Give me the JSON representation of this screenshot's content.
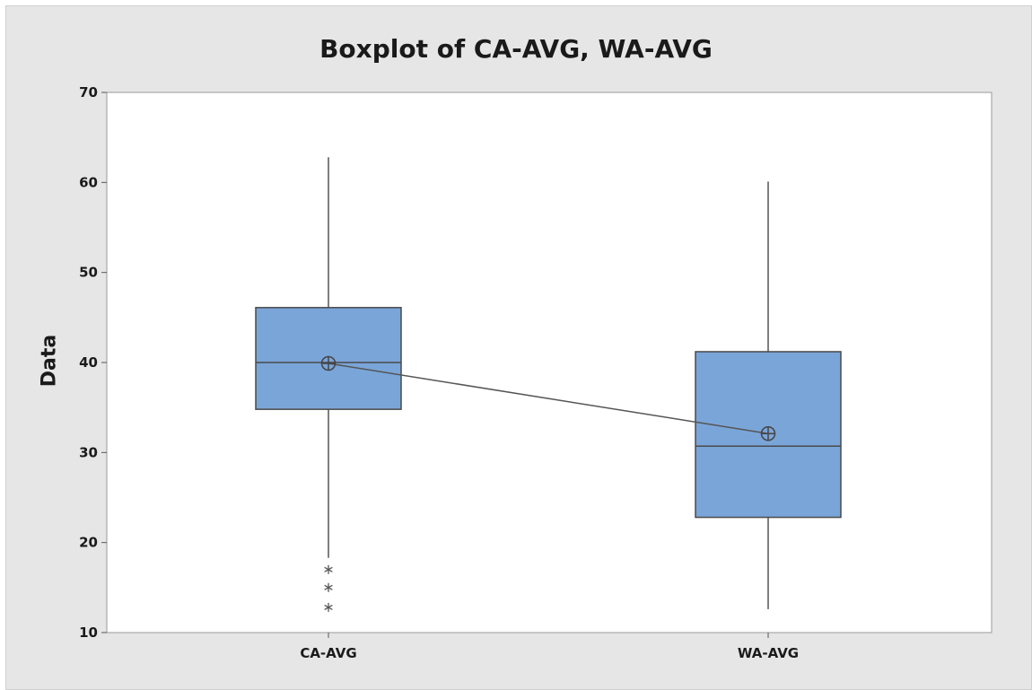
{
  "chart_data": {
    "type": "boxplot",
    "title": "Boxplot of CA-AVG, WA-AVG",
    "xlabel": "",
    "ylabel": "Data",
    "ylim": [
      10,
      70
    ],
    "yticks": [
      10,
      20,
      30,
      40,
      50,
      60,
      70
    ],
    "categories": [
      "CA-AVG",
      "WA-AVG"
    ],
    "series": [
      {
        "category": "CA-AVG",
        "whisker_low": 18.3,
        "q1": 34.8,
        "median": 40,
        "q3": 46.1,
        "whisker_high": 62.8,
        "mean": 39.9,
        "outliers": [
          17,
          15,
          12.8
        ]
      },
      {
        "category": "WA-AVG",
        "whisker_low": 12.6,
        "q1": 22.8,
        "median": 30.7,
        "q3": 41.2,
        "whisker_high": 60.1,
        "mean": 32.1,
        "outliers": []
      }
    ],
    "mean_connect_line": true,
    "grid": false,
    "colors": {
      "box_fill": "#7aa5d8",
      "box_stroke": "#4a4a4a",
      "line": "#555555",
      "background": "#e6e6e6",
      "plot_area": "#ffffff"
    }
  }
}
